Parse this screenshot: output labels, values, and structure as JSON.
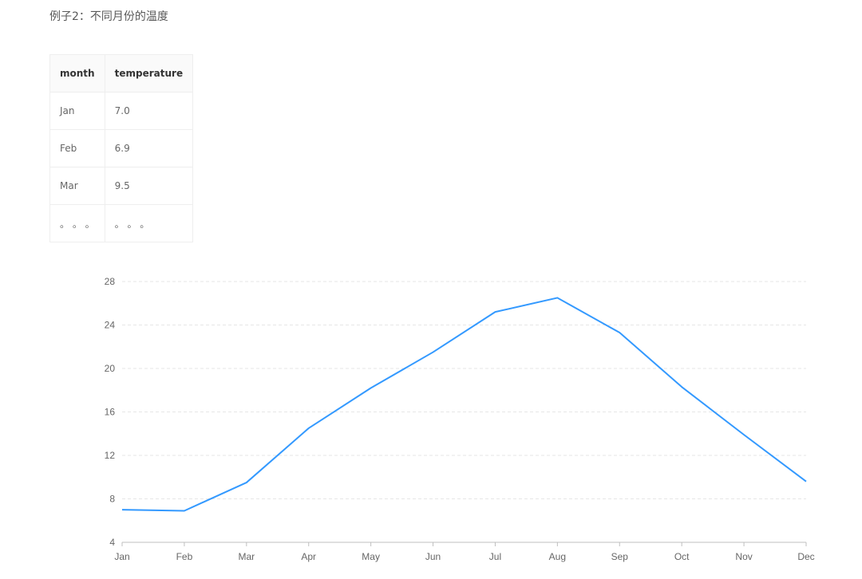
{
  "header": {
    "title": "例子2：不同月份的温度"
  },
  "table": {
    "columns": [
      "month",
      "temperature"
    ],
    "rows": [
      [
        "Jan",
        "7.0"
      ],
      [
        "Feb",
        "6.9"
      ],
      [
        "Mar",
        "9.5"
      ],
      [
        "。 。 。",
        "。 。 。"
      ]
    ]
  },
  "chart_data": {
    "type": "line",
    "categories": [
      "Jan",
      "Feb",
      "Mar",
      "Apr",
      "May",
      "Jun",
      "Jul",
      "Aug",
      "Sep",
      "Oct",
      "Nov",
      "Dec"
    ],
    "series": [
      {
        "name": "temperature",
        "color": "#3399ff",
        "values": [
          7.0,
          6.9,
          9.5,
          14.5,
          18.2,
          21.5,
          25.2,
          26.5,
          23.3,
          18.3,
          13.9,
          9.6
        ]
      }
    ],
    "ylim": [
      4,
      28
    ],
    "yticks": [
      4,
      8,
      12,
      16,
      20,
      24,
      28
    ],
    "grid": true
  }
}
